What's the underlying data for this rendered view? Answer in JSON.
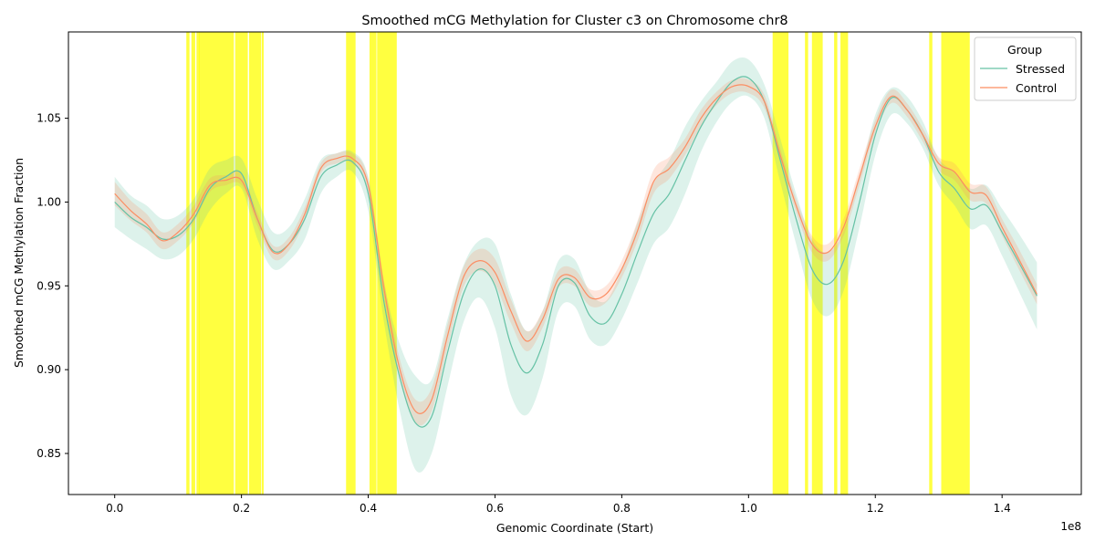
{
  "chart_data": {
    "type": "line",
    "title": "Smoothed mCG Methylation for Cluster c3 on Chromosome chr8",
    "xlabel": "Genomic Coordinate (Start)",
    "ylabel": "Smoothed mCG Methylation Fraction",
    "x_offset_label": "1e8",
    "xlim": [
      -7300000,
      152500000
    ],
    "ylim": [
      0.8255,
      1.1015
    ],
    "x_ticks": [
      0,
      20000000,
      40000000,
      60000000,
      80000000,
      100000000,
      120000000,
      140000000
    ],
    "x_tick_labels": [
      "0.0",
      "0.2",
      "0.4",
      "0.6",
      "0.8",
      "1.0",
      "1.2",
      "1.4"
    ],
    "y_ticks": [
      0.85,
      0.9,
      0.95,
      1.0,
      1.05
    ],
    "y_tick_labels": [
      "0.85",
      "0.90",
      "0.95",
      "1.00",
      "1.05"
    ],
    "grid": false,
    "legend": {
      "title": "Group",
      "placement": "top-right"
    },
    "highlight_color": "#ffff00",
    "highlight_regions": [
      [
        11300000,
        11800000
      ],
      [
        12100000,
        12700000
      ],
      [
        12900000,
        13400000
      ],
      [
        13300000,
        18800000
      ],
      [
        19000000,
        21000000
      ],
      [
        21200000,
        23100000
      ],
      [
        23200000,
        23500000
      ],
      [
        36500000,
        38000000
      ],
      [
        40200000,
        41300000
      ],
      [
        41400000,
        44500000
      ],
      [
        103800000,
        106300000
      ],
      [
        108900000,
        109400000
      ],
      [
        110000000,
        111700000
      ],
      [
        113500000,
        114000000
      ],
      [
        114500000,
        115700000
      ],
      [
        128500000,
        129000000
      ],
      [
        130400000,
        134900000
      ]
    ],
    "x": [
      0,
      2500000,
      5000000,
      7500000,
      10000000,
      12500000,
      15000000,
      17500000,
      20000000,
      22500000,
      25000000,
      27500000,
      30000000,
      32500000,
      35000000,
      37500000,
      40000000,
      42500000,
      45000000,
      47500000,
      50000000,
      52500000,
      55000000,
      57500000,
      60000000,
      62500000,
      65000000,
      67500000,
      70000000,
      72500000,
      75000000,
      77500000,
      80000000,
      82500000,
      85000000,
      87500000,
      90000000,
      92500000,
      95000000,
      97500000,
      100000000,
      102500000,
      105000000,
      107500000,
      110000000,
      112500000,
      115000000,
      117500000,
      120000000,
      122500000,
      125000000,
      127500000,
      130000000,
      132500000,
      135000000,
      137500000,
      140000000,
      142500000,
      145500000
    ],
    "series": [
      {
        "name": "Stressed",
        "color": "#66c2a5",
        "values": [
          1.0,
          0.991,
          0.985,
          0.978,
          0.98,
          0.99,
          1.008,
          1.015,
          1.017,
          0.99,
          0.971,
          0.975,
          0.99,
          1.015,
          1.022,
          1.024,
          1.005,
          0.94,
          0.895,
          0.868,
          0.872,
          0.91,
          0.945,
          0.96,
          0.95,
          0.915,
          0.898,
          0.915,
          0.95,
          0.952,
          0.932,
          0.928,
          0.945,
          0.97,
          0.993,
          1.005,
          1.025,
          1.045,
          1.06,
          1.072,
          1.074,
          1.06,
          1.025,
          0.99,
          0.96,
          0.951,
          0.965,
          1.0,
          1.04,
          1.062,
          1.055,
          1.04,
          1.018,
          1.008,
          0.996,
          0.998,
          0.982,
          0.965,
          0.944
        ],
        "band_lower": [
          0.985,
          0.978,
          0.972,
          0.966,
          0.968,
          0.978,
          0.995,
          1.005,
          1.008,
          0.978,
          0.96,
          0.965,
          0.978,
          1.005,
          1.015,
          1.018,
          0.995,
          0.928,
          0.875,
          0.84,
          0.85,
          0.89,
          0.928,
          0.943,
          0.925,
          0.885,
          0.873,
          0.895,
          0.935,
          0.938,
          0.918,
          0.915,
          0.93,
          0.952,
          0.975,
          0.985,
          1.005,
          1.03,
          1.048,
          1.06,
          1.063,
          1.05,
          1.012,
          0.975,
          0.942,
          0.932,
          0.947,
          0.985,
          1.028,
          1.052,
          1.047,
          1.032,
          1.01,
          0.998,
          0.984,
          0.986,
          0.968,
          0.948,
          0.924
        ],
        "band_upper": [
          1.015,
          1.004,
          0.998,
          0.99,
          0.992,
          1.002,
          1.02,
          1.025,
          1.026,
          1.002,
          0.982,
          0.985,
          1.002,
          1.025,
          1.029,
          1.03,
          1.015,
          0.952,
          0.915,
          0.896,
          0.894,
          0.93,
          0.962,
          0.977,
          0.975,
          0.945,
          0.923,
          0.935,
          0.965,
          0.966,
          0.946,
          0.941,
          0.96,
          0.988,
          1.011,
          1.025,
          1.045,
          1.06,
          1.072,
          1.084,
          1.085,
          1.07,
          1.038,
          1.005,
          0.978,
          0.97,
          0.983,
          1.015,
          1.052,
          1.068,
          1.063,
          1.048,
          1.026,
          1.018,
          1.008,
          1.01,
          0.996,
          0.982,
          0.964
        ]
      },
      {
        "name": "Control",
        "color": "#fc8d62",
        "values": [
          1.005,
          0.995,
          0.987,
          0.977,
          0.982,
          0.993,
          1.01,
          1.013,
          1.013,
          0.99,
          0.97,
          0.975,
          0.993,
          1.02,
          1.026,
          1.026,
          1.01,
          0.948,
          0.9,
          0.875,
          0.882,
          0.92,
          0.955,
          0.965,
          0.958,
          0.935,
          0.917,
          0.93,
          0.954,
          0.955,
          0.943,
          0.945,
          0.96,
          0.983,
          1.012,
          1.02,
          1.033,
          1.05,
          1.062,
          1.069,
          1.069,
          1.06,
          1.028,
          0.998,
          0.975,
          0.97,
          0.985,
          1.015,
          1.045,
          1.063,
          1.055,
          1.04,
          1.023,
          1.018,
          1.006,
          1.004,
          0.985,
          0.967,
          0.945
        ],
        "band_lower": [
          0.998,
          0.989,
          0.982,
          0.972,
          0.977,
          0.988,
          1.006,
          1.01,
          1.01,
          0.986,
          0.966,
          0.971,
          0.989,
          1.017,
          1.023,
          1.023,
          1.006,
          0.943,
          0.894,
          0.868,
          0.875,
          0.913,
          0.949,
          0.959,
          0.951,
          0.928,
          0.911,
          0.925,
          0.949,
          0.95,
          0.938,
          0.94,
          0.955,
          0.977,
          1.005,
          1.014,
          1.028,
          1.045,
          1.058,
          1.065,
          1.065,
          1.056,
          1.024,
          0.994,
          0.97,
          0.965,
          0.98,
          1.01,
          1.041,
          1.059,
          1.051,
          1.036,
          1.019,
          1.013,
          1.001,
          0.999,
          0.98,
          0.961,
          0.939
        ],
        "band_upper": [
          1.012,
          1.001,
          0.993,
          0.982,
          0.987,
          0.998,
          1.014,
          1.016,
          1.017,
          0.994,
          0.974,
          0.979,
          0.997,
          1.023,
          1.029,
          1.029,
          1.014,
          0.953,
          0.906,
          0.882,
          0.889,
          0.927,
          0.961,
          0.972,
          0.966,
          0.942,
          0.923,
          0.935,
          0.959,
          0.96,
          0.948,
          0.95,
          0.965,
          0.989,
          1.019,
          1.027,
          1.038,
          1.055,
          1.066,
          1.073,
          1.073,
          1.064,
          1.032,
          1.002,
          0.98,
          0.975,
          0.99,
          1.02,
          1.049,
          1.067,
          1.059,
          1.044,
          1.027,
          1.023,
          1.011,
          1.009,
          0.99,
          0.973,
          0.951
        ]
      }
    ]
  }
}
